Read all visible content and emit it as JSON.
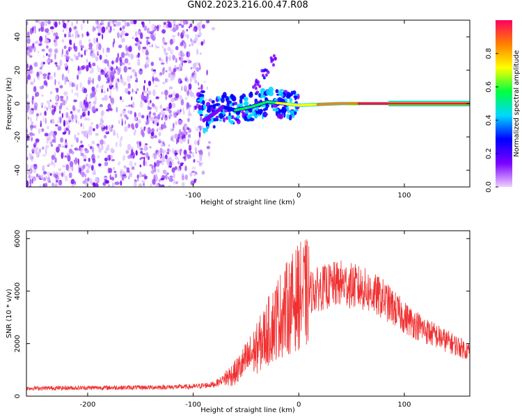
{
  "title": "GN02.2023.216.00.47.R08",
  "chart_data": [
    {
      "type": "heatmap",
      "xlabel": "Height of straight line (km)",
      "ylabel": "Frequency (Hz)",
      "xlim": [
        -258,
        162
      ],
      "ylim": [
        -50,
        50
      ],
      "x_ticks": [
        -200,
        -100,
        0,
        100
      ],
      "y_ticks": [
        -40,
        -20,
        0,
        20,
        40
      ],
      "x_tick_labels": [
        "-200",
        "-100",
        "0",
        "100"
      ],
      "y_tick_labels": [
        "-40",
        "-20",
        "0",
        "20",
        "40"
      ],
      "noise_region_x": [
        -258,
        -80
      ],
      "ridge": [
        {
          "x": -90,
          "y": -10
        },
        {
          "x": -80,
          "y": -6
        },
        {
          "x": -72,
          "y": -2
        },
        {
          "x": -60,
          "y": -4
        },
        {
          "x": -45,
          "y": -2
        },
        {
          "x": -30,
          "y": 1
        },
        {
          "x": -15,
          "y": 0
        },
        {
          "x": 0,
          "y": -1
        },
        {
          "x": 40,
          "y": 0
        },
        {
          "x": 85,
          "y": 0
        },
        {
          "x": 162,
          "y": 0
        }
      ],
      "branch": [
        {
          "x": -40,
          "y": 12
        },
        {
          "x": -32,
          "y": 18
        },
        {
          "x": -25,
          "y": 26
        }
      ],
      "colorbar": {
        "label": "Normalized spectral amplitude",
        "range": [
          0,
          1
        ],
        "ticks": [
          0.0,
          0.2,
          0.4,
          0.6,
          0.8
        ],
        "tick_labels": [
          "0.0",
          "0.2",
          "0.4",
          "0.6",
          "0.8"
        ],
        "colors": [
          "#f0d0ff",
          "#7a00ff",
          "#0000ff",
          "#00d8ff",
          "#00ff40",
          "#ffff00",
          "#ff8000",
          "#ff0060"
        ]
      },
      "grid": false
    },
    {
      "type": "line",
      "xlabel": "Height of straight line (km)",
      "ylabel": "SNR (10 * v/v)",
      "xlim": [
        -258,
        162
      ],
      "ylim": [
        0,
        6300
      ],
      "x_ticks": [
        -200,
        -100,
        0,
        100
      ],
      "y_ticks": [
        0,
        2000,
        4000,
        6000
      ],
      "x_tick_labels": [
        "-200",
        "-100",
        "0",
        "100"
      ],
      "y_tick_labels": [
        "0",
        "2000",
        "4000",
        "6000"
      ],
      "line_color": "#f03030",
      "x": [
        -258,
        -200,
        -150,
        -100,
        -80,
        -60,
        -40,
        -20,
        0,
        20,
        40,
        60,
        80,
        100,
        120,
        140,
        162
      ],
      "values": [
        300,
        320,
        330,
        360,
        450,
        900,
        1800,
        3000,
        3800,
        4100,
        4300,
        4100,
        3700,
        3000,
        2500,
        2100,
        1700
      ],
      "grid": false
    }
  ]
}
